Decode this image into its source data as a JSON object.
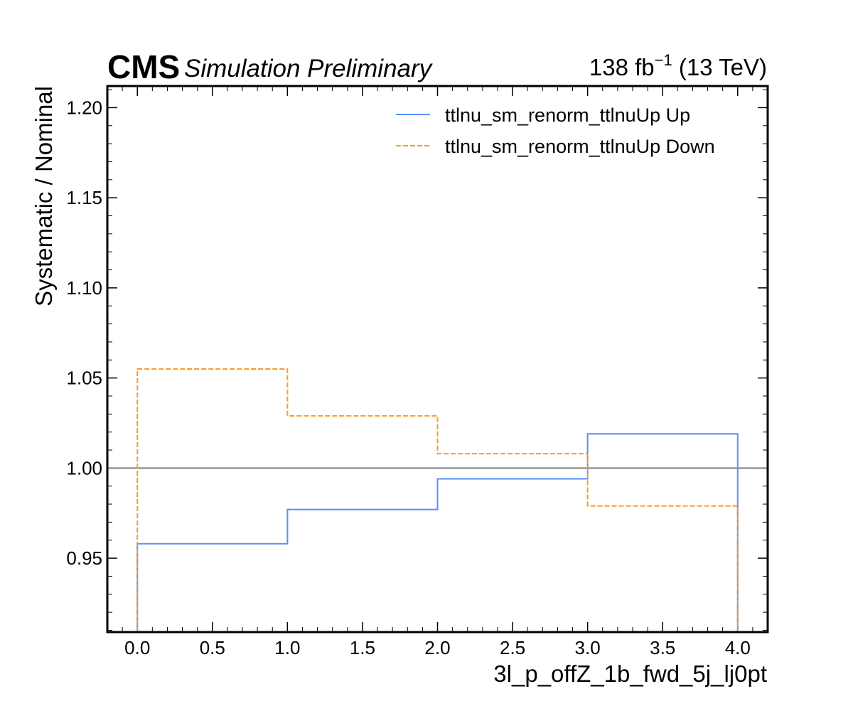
{
  "header": {
    "cms": "CMS",
    "simulation": "Simulation Preliminary",
    "lumi": "138 fb",
    "lumi_exp": "−1",
    "energy": " (13 TeV)"
  },
  "chart_data": {
    "type": "line",
    "step": true,
    "title": "",
    "xlabel": "3l_p_offZ_1b_fwd_5j_lj0pt",
    "ylabel": "Systematic / Nominal",
    "xlim": [
      -0.2,
      4.2
    ],
    "ylim": [
      0.909,
      1.212
    ],
    "bin_edges": [
      0.0,
      1.0,
      2.0,
      3.0,
      4.0
    ],
    "xticks": [
      "0.0",
      "0.5",
      "1.0",
      "1.5",
      "2.0",
      "2.5",
      "3.0",
      "3.5",
      "4.0"
    ],
    "yticks": [
      "0.95",
      "1.00",
      "1.05",
      "1.10",
      "1.15",
      "1.20"
    ],
    "reference_line": 1.0,
    "grid": false,
    "legend_position": "top-right",
    "series": [
      {
        "name": "ttlnu_sm_renorm_ttlnuUp Up",
        "style": "solid",
        "color": "#5790fc",
        "values": [
          0.958,
          0.977,
          0.994,
          1.019
        ]
      },
      {
        "name": "ttlnu_sm_renorm_ttlnuUp Down",
        "style": "dashed",
        "color": "#f89c20",
        "values": [
          1.055,
          1.029,
          1.008,
          0.979
        ]
      }
    ],
    "colors": {
      "reference": "#808080",
      "frame": "#000000"
    }
  }
}
